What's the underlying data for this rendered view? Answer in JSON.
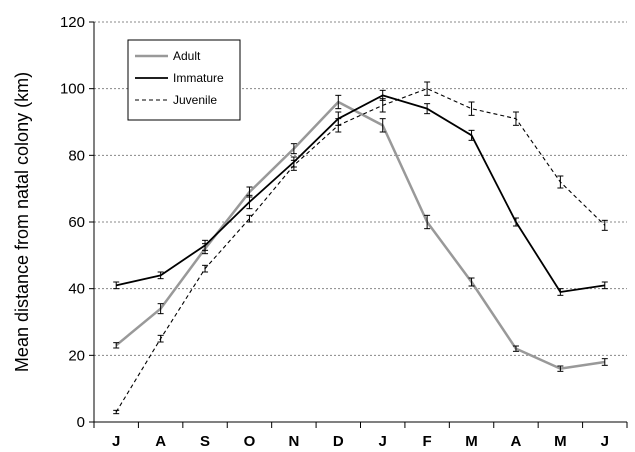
{
  "chart_data": {
    "type": "line",
    "ylabel": "Mean distance from natal colony (km)",
    "xlabel": "",
    "ylim": [
      0,
      120
    ],
    "yticks": [
      0,
      20,
      40,
      60,
      80,
      100,
      120
    ],
    "grid": "horizontal dashed",
    "legend_position": "top-left",
    "categories": [
      "J",
      "A",
      "S",
      "O",
      "N",
      "D",
      "J",
      "F",
      "M",
      "A",
      "M",
      "J"
    ],
    "series": [
      {
        "name": "Adult",
        "style": "solid-gray",
        "color": "#999999",
        "values": [
          23,
          34,
          52,
          69,
          82,
          96,
          89,
          60,
          42,
          22,
          16,
          18
        ],
        "errors": [
          0.8,
          1.5,
          1.5,
          1.5,
          1.5,
          2,
          2,
          2,
          1.2,
          0.8,
          0.8,
          1
        ]
      },
      {
        "name": "Immature",
        "style": "solid-black",
        "color": "#000000",
        "values": [
          41,
          44,
          53,
          66,
          78,
          91,
          98,
          94,
          86,
          60,
          39,
          41
        ],
        "errors": [
          1,
          1,
          1.5,
          2,
          1.5,
          2,
          1.5,
          1.5,
          1.5,
          1.2,
          1,
          1
        ]
      },
      {
        "name": "Juvenile",
        "style": "dashed-black",
        "color": "#000000",
        "values": [
          3,
          25,
          46,
          61,
          77,
          89,
          95,
          100,
          94,
          91,
          72,
          59
        ],
        "errors": [
          0.5,
          1,
          1,
          1,
          1.5,
          2,
          2,
          2,
          2,
          2,
          1.8,
          1.5
        ]
      }
    ]
  }
}
